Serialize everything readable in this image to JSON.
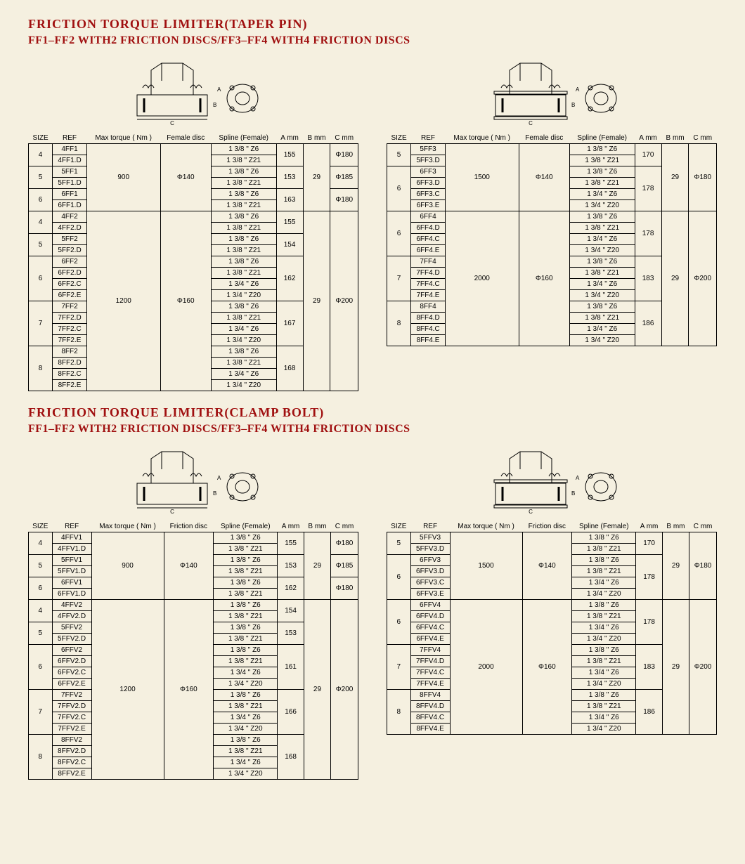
{
  "colors": {
    "title": "#a01010",
    "background": "#f5f0e0",
    "border": "#000000",
    "text": "#000000"
  },
  "typography": {
    "title_fontsize": 18,
    "subtitle_fontsize": 16,
    "body_fontsize": 10,
    "title_family": "Times New Roman",
    "body_family": "Arial"
  },
  "section1": {
    "title": "FRICTION TORQUE LIMITER(TAPER PIN)",
    "subtitle": "FF1–FF2 WITH2 FRICTION DISCS/FF3–FF4 WITH4 FRICTION DISCS",
    "headers_left": [
      "SIZE",
      "REF",
      "Max torque ( Nm )",
      "Female disc",
      "Spline (Female)",
      "A mm",
      "B mm",
      "C mm"
    ],
    "headers_right": [
      "SIZE",
      "REF",
      "Max torque ( Nm )",
      "Female disc",
      "Spline (Female)",
      "A mm",
      "B mm",
      "C mm"
    ],
    "table_left": {
      "type": "table",
      "groups": [
        {
          "size": "4",
          "refs": [
            "4FF1",
            "4FF1.D"
          ],
          "torque": "900",
          "disc": "Φ140",
          "splines": [
            "1 3/8 \" Z6",
            "1 3/8 \" Z21"
          ],
          "A": "155",
          "B": "29",
          "C": "Φ180",
          "torque_span": 6,
          "disc_span": 6,
          "B_span": 6
        },
        {
          "size": "5",
          "refs": [
            "5FF1",
            "5FF1.D"
          ],
          "splines": [
            "1 3/8 \" Z6",
            "1 3/8 \" Z21"
          ],
          "A": "153",
          "C": "Φ185"
        },
        {
          "size": "6",
          "refs": [
            "6FF1",
            "6FF1.D"
          ],
          "splines": [
            "1 3/8 \" Z6",
            "1 3/8 \" Z21"
          ],
          "A": "163",
          "C": "Φ180"
        },
        {
          "size": "4",
          "refs": [
            "4FF2",
            "4FF2.D"
          ],
          "torque": "1200",
          "disc": "Φ160",
          "splines": [
            "1 3/8 \" Z6",
            "1 3/8 \" Z21"
          ],
          "A": "155",
          "B": "29",
          "C": "Φ200",
          "torque_span": 16,
          "disc_span": 16,
          "B_span": 16,
          "C_span": 16
        },
        {
          "size": "5",
          "refs": [
            "5FF2",
            "5FF2.D"
          ],
          "splines": [
            "1 3/8 \" Z6",
            "1 3/8 \" Z21"
          ],
          "A": "154"
        },
        {
          "size": "6",
          "refs": [
            "6FF2",
            "6FF2.D",
            "6FF2.C",
            "6FF2.E"
          ],
          "splines": [
            "1 3/8 \" Z6",
            "1 3/8 \" Z21",
            "1 3/4 \" Z6",
            "1 3/4 \" Z20"
          ],
          "A": "162"
        },
        {
          "size": "7",
          "refs": [
            "7FF2",
            "7FF2.D",
            "7FF2.C",
            "7FF2.E"
          ],
          "splines": [
            "1 3/8 \" Z6",
            "1 3/8 \" Z21",
            "1 3/4 \" Z6",
            "1 3/4 \" Z20"
          ],
          "A": "167"
        },
        {
          "size": "8",
          "refs": [
            "8FF2",
            "8FF2.D",
            "8FF2.C",
            "8FF2.E"
          ],
          "splines": [
            "1 3/8 \" Z6",
            "1 3/8 \" Z21",
            "1 3/4 \" Z6",
            "1 3/4 \" Z20"
          ],
          "A": "168"
        }
      ]
    },
    "table_right": {
      "type": "table",
      "groups": [
        {
          "size": "5",
          "refs": [
            "5FF3",
            "5FF3.D"
          ],
          "torque": "1500",
          "disc": "Φ140",
          "splines": [
            "1 3/8 \" Z6",
            "1 3/8 \" Z21"
          ],
          "A": "170",
          "B": "29",
          "C": "Φ180",
          "torque_span": 6,
          "disc_span": 6,
          "B_span": 6,
          "C_span": 6,
          "A_span": 2
        },
        {
          "size": "6",
          "refs": [
            "6FF3",
            "6FF3.D",
            "6FF3.C",
            "6FF3.E"
          ],
          "splines": [
            "1 3/8 \" Z6",
            "1 3/8 \" Z21",
            "1 3/4 \" Z6",
            "1 3/4 \" Z20"
          ],
          "A": "178",
          "A_span": 4
        },
        {
          "size": "6",
          "refs": [
            "6FF4",
            "6FF4.D",
            "6FF4.C",
            "6FF4.E"
          ],
          "torque": "2000",
          "disc": "Φ160",
          "splines": [
            "1 3/8 \" Z6",
            "1 3/8 \" Z21",
            "1 3/4 \" Z6",
            "1 3/4 \" Z20"
          ],
          "A": "178",
          "B": "29",
          "C": "Φ200",
          "torque_span": 12,
          "disc_span": 12,
          "B_span": 12,
          "C_span": 12,
          "A_span": 4
        },
        {
          "size": "7",
          "refs": [
            "7FF4",
            "7FF4.D",
            "7FF4.C",
            "7FF4.E"
          ],
          "splines": [
            "1 3/8 \" Z6",
            "1 3/8 \" Z21",
            "1 3/4 \" Z6",
            "1 3/4 \" Z20"
          ],
          "A": "183",
          "A_span": 4
        },
        {
          "size": "8",
          "refs": [
            "8FF4",
            "8FF4.D",
            "8FF4.C",
            "8FF4.E"
          ],
          "splines": [
            "1 3/8 \" Z6",
            "1 3/8 \" Z21",
            "1 3/4 \" Z6",
            "1 3/4 \" Z20"
          ],
          "A": "186",
          "A_span": 4
        }
      ]
    }
  },
  "section2": {
    "title": "FRICTION TORQUE LIMITER(CLAMP BOLT)",
    "subtitle": "FF1–FF2 WITH2 FRICTION DISCS/FF3–FF4 WITH4 FRICTION DISCS",
    "headers_left": [
      "SIZE",
      "REF",
      "Max torque ( Nm )",
      "Friction disc",
      "Spline (Female)",
      "A mm",
      "B mm",
      "C mm"
    ],
    "headers_right": [
      "SIZE",
      "REF",
      "Max torque ( Nm )",
      "Friction disc",
      "Spline (Female)",
      "A mm",
      "B mm",
      "C mm"
    ],
    "table_left": {
      "type": "table",
      "groups": [
        {
          "size": "4",
          "refs": [
            "4FFV1",
            "4FFV1.D"
          ],
          "torque": "900",
          "disc": "Φ140",
          "splines": [
            "1 3/8 \" Z6",
            "1 3/8 \" Z21"
          ],
          "A": "155",
          "B": "29",
          "C": "Φ180",
          "torque_span": 6,
          "disc_span": 6,
          "B_span": 6
        },
        {
          "size": "5",
          "refs": [
            "5FFV1",
            "5FFV1.D"
          ],
          "splines": [
            "1 3/8 \" Z6",
            "1 3/8 \" Z21"
          ],
          "A": "153",
          "C": "Φ185"
        },
        {
          "size": "6",
          "refs": [
            "6FFV1",
            "6FFV1.D"
          ],
          "splines": [
            "1 3/8 \" Z6",
            "1 3/8 \" Z21"
          ],
          "A": "162",
          "C": "Φ180"
        },
        {
          "size": "4",
          "refs": [
            "4FFV2",
            "4FFV2.D"
          ],
          "torque": "1200",
          "disc": "Φ160",
          "splines": [
            "1 3/8 \" Z6",
            "1 3/8 \" Z21"
          ],
          "A": "154",
          "B": "29",
          "C": "Φ200",
          "torque_span": 16,
          "disc_span": 16,
          "B_span": 16,
          "C_span": 16
        },
        {
          "size": "5",
          "refs": [
            "5FFV2",
            "5FFV2.D"
          ],
          "splines": [
            "1 3/8 \" Z6",
            "1 3/8 \" Z21"
          ],
          "A": "153"
        },
        {
          "size": "6",
          "refs": [
            "6FFV2",
            "6FFV2.D",
            "6FFV2.C",
            "6FFV2.E"
          ],
          "splines": [
            "1 3/8 \" Z6",
            "1 3/8 \" Z21",
            "1 3/4 \" Z6",
            "1 3/4 \" Z20"
          ],
          "A": "161"
        },
        {
          "size": "7",
          "refs": [
            "7FFV2",
            "7FFV2.D",
            "7FFV2.C",
            "7FFV2.E"
          ],
          "splines": [
            "1 3/8 \" Z6",
            "1 3/8 \" Z21",
            "1 3/4 \" Z6",
            "1 3/4 \" Z20"
          ],
          "A": "166"
        },
        {
          "size": "8",
          "refs": [
            "8FFV2",
            "8FFV2.D",
            "8FFV2.C",
            "8FFV2.E"
          ],
          "splines": [
            "1 3/8 \" Z6",
            "1 3/8 \" Z21",
            "1 3/4 \" Z6",
            "1 3/4 \" Z20"
          ],
          "A": "168"
        }
      ]
    },
    "table_right": {
      "type": "table",
      "groups": [
        {
          "size": "5",
          "refs": [
            "5FFV3",
            "5FFV3.D"
          ],
          "torque": "1500",
          "disc": "Φ140",
          "splines": [
            "1 3/8 \" Z6",
            "1 3/8 \" Z21"
          ],
          "A": "170",
          "B": "29",
          "C": "Φ180",
          "torque_span": 6,
          "disc_span": 6,
          "B_span": 6,
          "C_span": 6,
          "A_span": 2
        },
        {
          "size": "6",
          "refs": [
            "6FFV3",
            "6FFV3.D",
            "6FFV3.C",
            "6FFV3.E"
          ],
          "splines": [
            "1 3/8 \" Z6",
            "1 3/8 \" Z21",
            "1 3/4 \" Z6",
            "1 3/4 \" Z20"
          ],
          "A": "178",
          "A_span": 4
        },
        {
          "size": "6",
          "refs": [
            "6FFV4",
            "6FFV4.D",
            "6FFV4.C",
            "6FFV4.E"
          ],
          "torque": "2000",
          "disc": "Φ160",
          "splines": [
            "1 3/8 \" Z6",
            "1 3/8 \" Z21",
            "1 3/4 \" Z6",
            "1 3/4 \" Z20"
          ],
          "A": "178",
          "B": "29",
          "C": "Φ200",
          "torque_span": 12,
          "disc_span": 12,
          "B_span": 12,
          "C_span": 12,
          "A_span": 4
        },
        {
          "size": "7",
          "refs": [
            "7FFV4",
            "7FFV4.D",
            "7FFV4.C",
            "7FFV4.E"
          ],
          "splines": [
            "1 3/8 \" Z6",
            "1 3/8 \" Z21",
            "1 3/4 \" Z6",
            "1 3/4 \" Z20"
          ],
          "A": "183",
          "A_span": 4
        },
        {
          "size": "8",
          "refs": [
            "8FFV4",
            "8FFV4.D",
            "8FFV4.C",
            "8FFV4.E"
          ],
          "splines": [
            "1 3/8 \" Z6",
            "1 3/8 \" Z21",
            "1 3/4 \" Z6",
            "1 3/4 \" Z20"
          ],
          "A": "186",
          "A_span": 4
        }
      ]
    }
  }
}
